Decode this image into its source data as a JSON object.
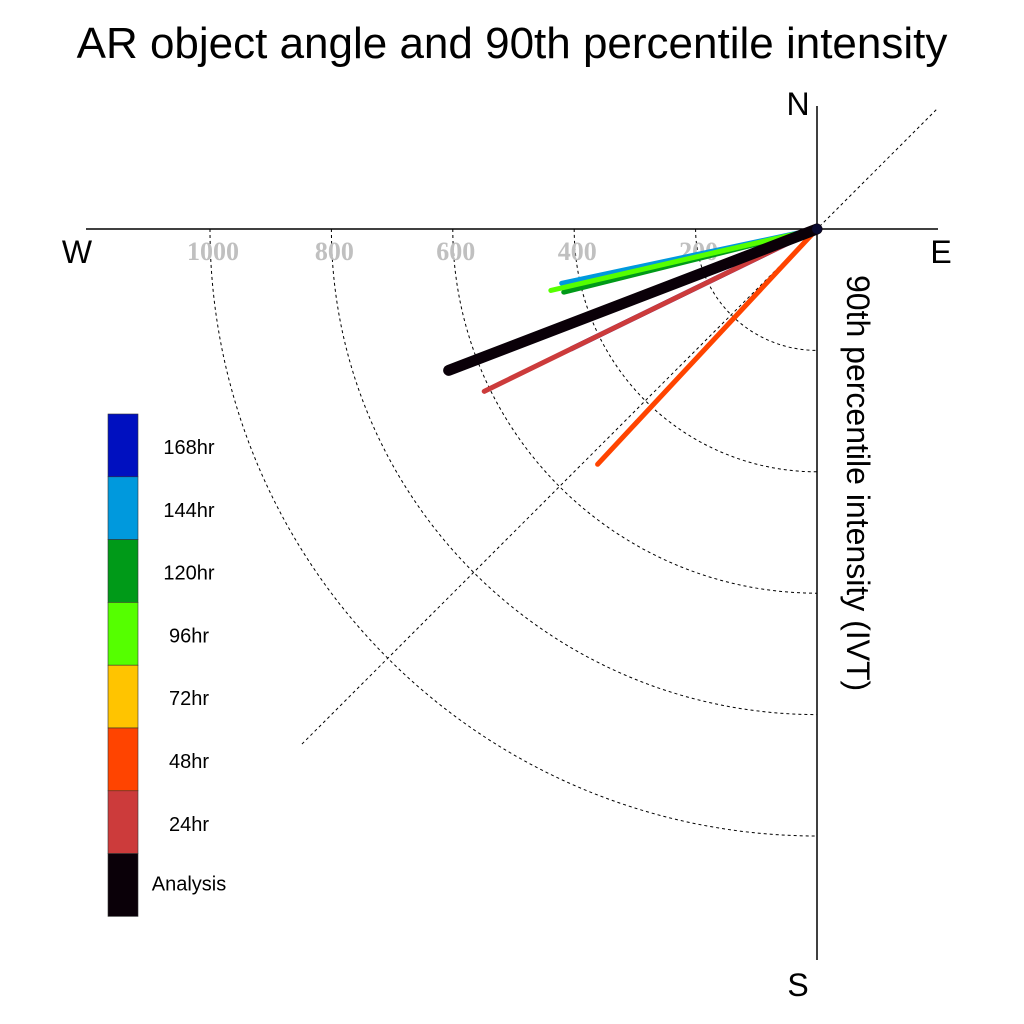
{
  "chart_data": {
    "type": "polar-quadrant-line",
    "title": "AR object angle and 90th percentile intensity",
    "ylabel": "90th percentile intensity (IVT)",
    "compass": {
      "north": "N",
      "south": "S",
      "west": "W",
      "east": "E"
    },
    "radial_ticks": [
      200,
      400,
      600,
      800,
      1000
    ],
    "radial_tick_labels": [
      "200",
      "400",
      "600",
      "800",
      "1000"
    ],
    "radial_max": 1200,
    "angle_reference_lines_deg": [
      45
    ],
    "series": [
      {
        "name": "168hr",
        "color": "#0010c0",
        "intensity": 450,
        "angle_deg": 26,
        "width": 5
      },
      {
        "name": "144hr",
        "color": "#0099dd",
        "intensity": 430,
        "angle_deg": 12,
        "width": 5
      },
      {
        "name": "120hr",
        "color": "#009a18",
        "intensity": 430,
        "angle_deg": 14,
        "width": 5
      },
      {
        "name": "96hr",
        "color": "#55ff00",
        "intensity": 450,
        "angle_deg": 13,
        "width": 5
      },
      {
        "name": "72hr",
        "color": "#ffc400",
        "intensity": 570,
        "angle_deg": 21,
        "width": 5
      },
      {
        "name": "48hr",
        "color": "#ff4400",
        "intensity": 530,
        "angle_deg": 47,
        "width": 5
      },
      {
        "name": "24hr",
        "color": "#cc3b3b",
        "intensity": 610,
        "angle_deg": 26,
        "width": 5
      },
      {
        "name": "Analysis",
        "color": "#0a0008",
        "intensity": 650,
        "angle_deg": 21,
        "width": 11
      }
    ],
    "legend": {
      "placement": "left",
      "entries": [
        {
          "label": "168hr",
          "color": "#0010c0"
        },
        {
          "label": "144hr",
          "color": "#0099dd"
        },
        {
          "label": "120hr",
          "color": "#009a18"
        },
        {
          "label": "96hr",
          "color": "#55ff00"
        },
        {
          "label": "72hr",
          "color": "#ffc400"
        },
        {
          "label": "48hr",
          "color": "#ff4400"
        },
        {
          "label": "24hr",
          "color": "#cc3b3b"
        },
        {
          "label": "Analysis",
          "color": "#0a0008"
        }
      ]
    }
  }
}
